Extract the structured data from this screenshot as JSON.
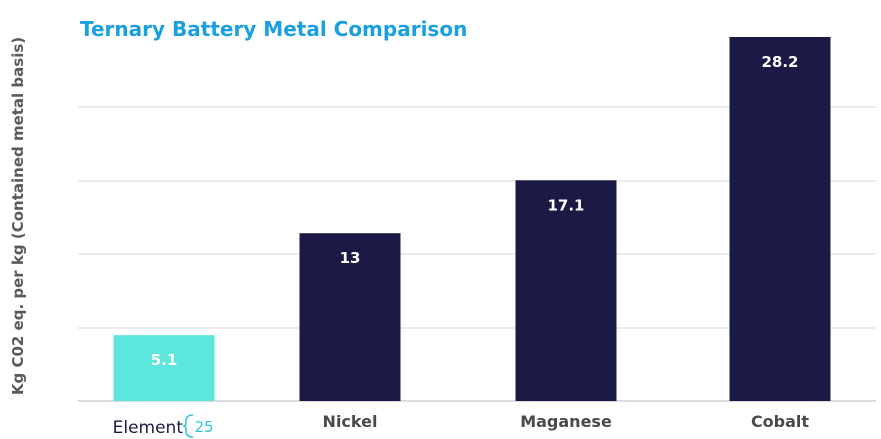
{
  "chart_data": {
    "type": "bar",
    "title": "Ternary Battery Metal Comparison",
    "ylabel": "Kg C02 eq. per kg (Contained metal basis)",
    "xlabel": "",
    "categories": [
      "Element 25",
      "Nickel",
      "Maganese",
      "Cobalt"
    ],
    "values": [
      5.1,
      13,
      17.1,
      28.2
    ],
    "data_labels": [
      "5.1",
      "13",
      "17.1",
      "28.2"
    ],
    "ylim": [
      0,
      28.2
    ],
    "grid": true,
    "legend": "none",
    "highlight_category_index": 0,
    "first_category_rendered_as": "logo"
  },
  "logo": {
    "word": "Element",
    "number": "25"
  },
  "colors": {
    "title": "#1aa0e0",
    "ylabel": "#5a5a5a",
    "bar_default": "#1b1a47",
    "bar_highlight": "#5ce6dc",
    "bar_label": "#ffffff",
    "category_label": "#4a4a4a",
    "grid": "#e6e6e6",
    "axis": "#cfcfcf",
    "logo_word": "#1b1a47",
    "logo_brace": "#2fc7d8"
  }
}
